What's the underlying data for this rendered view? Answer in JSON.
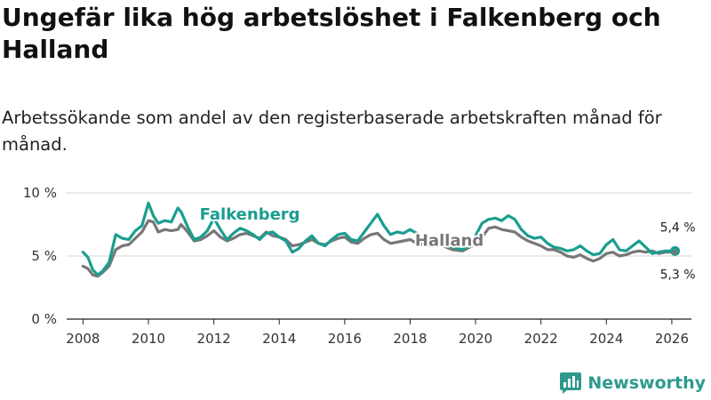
{
  "title": "Ungefär lika hög arbetslöshet i Falkenberg och Halland",
  "subtitle": "Arbetssökande som andel av den registerbaserade arbetskraften månad för månad.",
  "brand": "Newsworthy",
  "colors": {
    "falkenberg": "#1a9e8f",
    "halland": "#777777",
    "grid": "#d6d6d6",
    "axis": "#222222"
  },
  "chart_data": {
    "type": "line",
    "title": "Ungefär lika hög arbetslöshet i Falkenberg och Halland",
    "xlabel": "",
    "ylabel": "",
    "xlim": [
      2007.5,
      2026.6
    ],
    "ylim": [
      0,
      10
    ],
    "x_ticks": [
      2008,
      2010,
      2012,
      2014,
      2016,
      2018,
      2020,
      2022,
      2024,
      2026
    ],
    "x_tick_labels": [
      "2008",
      "2010",
      "2012",
      "2014",
      "2016",
      "2018",
      "2020",
      "2022",
      "2024",
      "2026"
    ],
    "y_ticks": [
      0,
      5,
      10
    ],
    "y_tick_labels": [
      "0 %",
      "5 %",
      "10 %"
    ],
    "grid": true,
    "series": [
      {
        "name": "Halland",
        "label": "Halland",
        "end_label": "5,3 %",
        "x": [
          2008.0,
          2008.15,
          2008.3,
          2008.45,
          2008.6,
          2008.8,
          2009.0,
          2009.2,
          2009.4,
          2009.6,
          2009.8,
          2010.0,
          2010.15,
          2010.3,
          2010.5,
          2010.7,
          2010.9,
          2011.0,
          2011.2,
          2011.4,
          2011.6,
          2011.8,
          2012.0,
          2012.2,
          2012.4,
          2012.6,
          2012.8,
          2013.0,
          2013.2,
          2013.4,
          2013.6,
          2013.8,
          2014.0,
          2014.2,
          2014.4,
          2014.6,
          2014.8,
          2015.0,
          2015.2,
          2015.4,
          2015.6,
          2015.8,
          2016.0,
          2016.2,
          2016.4,
          2016.6,
          2016.8,
          2017.0,
          2017.2,
          2017.4,
          2017.6,
          2017.8,
          2018.0,
          2018.2,
          2018.4,
          2018.6,
          2018.8,
          2019.0,
          2019.3,
          2019.6,
          2019.9,
          2020.2,
          2020.4,
          2020.6,
          2020.8,
          2021.0,
          2021.2,
          2021.4,
          2021.6,
          2021.8,
          2022.0,
          2022.2,
          2022.4,
          2022.6,
          2022.8,
          2023.0,
          2023.2,
          2023.4,
          2023.6,
          2023.8,
          2024.0,
          2024.2,
          2024.4,
          2024.6,
          2024.8,
          2025.0,
          2025.2,
          2025.4,
          2025.6,
          2025.8,
          2026.0,
          2026.1
        ],
        "values": [
          4.2,
          4.0,
          3.5,
          3.4,
          3.7,
          4.2,
          5.5,
          5.8,
          5.9,
          6.4,
          6.9,
          7.8,
          7.7,
          6.9,
          7.1,
          7.0,
          7.1,
          7.5,
          6.9,
          6.2,
          6.3,
          6.6,
          7.0,
          6.5,
          6.2,
          6.4,
          6.7,
          6.8,
          6.6,
          6.4,
          6.9,
          6.6,
          6.5,
          6.3,
          5.8,
          5.9,
          6.1,
          6.3,
          6.0,
          5.9,
          6.2,
          6.4,
          6.5,
          6.1,
          6.0,
          6.4,
          6.7,
          6.8,
          6.3,
          6.0,
          6.1,
          6.2,
          6.3,
          6.0,
          5.9,
          5.8,
          5.9,
          5.8,
          5.5,
          5.4,
          5.8,
          6.5,
          7.2,
          7.3,
          7.1,
          7.0,
          6.9,
          6.5,
          6.2,
          6.0,
          5.8,
          5.5,
          5.5,
          5.3,
          5.0,
          4.9,
          5.1,
          4.8,
          4.6,
          4.8,
          5.2,
          5.3,
          5.0,
          5.1,
          5.3,
          5.4,
          5.3,
          5.4,
          5.2,
          5.3,
          5.3,
          5.3
        ]
      },
      {
        "name": "Falkenberg",
        "label": "Falkenberg",
        "end_label": "5,4 %",
        "x": [
          2008.0,
          2008.15,
          2008.3,
          2008.45,
          2008.6,
          2008.8,
          2009.0,
          2009.2,
          2009.4,
          2009.6,
          2009.8,
          2010.0,
          2010.15,
          2010.3,
          2010.5,
          2010.7,
          2010.9,
          2011.0,
          2011.2,
          2011.4,
          2011.6,
          2011.8,
          2012.0,
          2012.2,
          2012.4,
          2012.6,
          2012.8,
          2013.0,
          2013.2,
          2013.4,
          2013.6,
          2013.8,
          2014.0,
          2014.2,
          2014.4,
          2014.6,
          2014.8,
          2015.0,
          2015.2,
          2015.4,
          2015.6,
          2015.8,
          2016.0,
          2016.2,
          2016.4,
          2016.6,
          2016.8,
          2017.0,
          2017.2,
          2017.4,
          2017.6,
          2017.8,
          2018.0,
          2018.2,
          2018.4,
          2018.6,
          2018.8,
          2019.0,
          2019.3,
          2019.6,
          2019.9,
          2020.2,
          2020.4,
          2020.6,
          2020.8,
          2021.0,
          2021.2,
          2021.4,
          2021.6,
          2021.8,
          2022.0,
          2022.2,
          2022.4,
          2022.6,
          2022.8,
          2023.0,
          2023.2,
          2023.4,
          2023.6,
          2023.8,
          2024.0,
          2024.2,
          2024.4,
          2024.6,
          2024.8,
          2025.0,
          2025.2,
          2025.4,
          2025.6,
          2025.8,
          2026.0,
          2026.1
        ],
        "values": [
          5.3,
          4.9,
          3.9,
          3.5,
          3.8,
          4.5,
          6.7,
          6.4,
          6.3,
          7.0,
          7.4,
          9.2,
          8.2,
          7.6,
          7.8,
          7.7,
          8.8,
          8.5,
          7.3,
          6.3,
          6.5,
          7.0,
          8.0,
          7.1,
          6.3,
          6.8,
          7.2,
          7.0,
          6.7,
          6.3,
          6.8,
          6.9,
          6.5,
          6.2,
          5.3,
          5.6,
          6.2,
          6.6,
          6.0,
          5.8,
          6.3,
          6.7,
          6.8,
          6.3,
          6.2,
          6.9,
          7.6,
          8.3,
          7.4,
          6.7,
          6.9,
          6.8,
          7.1,
          6.8,
          6.2,
          6.0,
          6.4,
          6.0,
          5.7,
          5.5,
          6.1,
          7.6,
          7.9,
          8.0,
          7.8,
          8.2,
          7.9,
          7.1,
          6.6,
          6.4,
          6.5,
          6.0,
          5.7,
          5.6,
          5.4,
          5.5,
          5.8,
          5.4,
          5.1,
          5.2,
          5.9,
          6.3,
          5.5,
          5.4,
          5.8,
          6.2,
          5.7,
          5.2,
          5.3,
          5.4,
          5.4,
          5.4
        ]
      }
    ]
  }
}
